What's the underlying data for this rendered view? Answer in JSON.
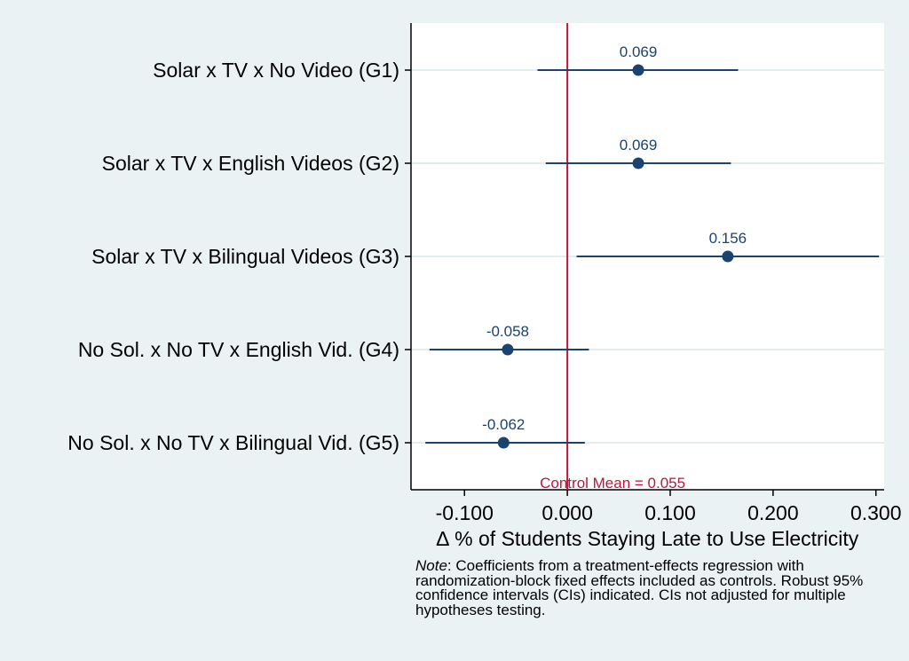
{
  "chart_data": {
    "type": "scatter",
    "subtype": "coefficient-plot",
    "categories": [
      "Solar x TV x No Video (G1)",
      "Solar x TV x English Videos (G2)",
      "Solar x TV x Bilingual Videos (G3)",
      "No Sol. x No TV x English Vid. (G4)",
      "No Sol. x No TV x Bilingual Vid. (G5)"
    ],
    "estimates": [
      {
        "label": "0.069",
        "value": 0.069,
        "ci_low": -0.029,
        "ci_high": 0.166
      },
      {
        "label": "0.069",
        "value": 0.069,
        "ci_low": -0.021,
        "ci_high": 0.159
      },
      {
        "label": "0.156",
        "value": 0.156,
        "ci_low": 0.009,
        "ci_high": 0.303
      },
      {
        "label": "-0.058",
        "value": -0.058,
        "ci_low": -0.134,
        "ci_high": 0.021
      },
      {
        "label": "-0.062",
        "value": -0.062,
        "ci_low": -0.138,
        "ci_high": 0.017
      }
    ],
    "xlabel": "∆ % of Students Staying Late to Use Electricity",
    "xticks": [
      {
        "value": -0.1,
        "label": "-0.100"
      },
      {
        "value": 0.0,
        "label": "0.000"
      },
      {
        "value": 0.1,
        "label": "0.100"
      },
      {
        "value": 0.2,
        "label": "0.200"
      },
      {
        "value": 0.3,
        "label": "0.300"
      }
    ],
    "xlim": [
      -0.152,
      0.308
    ],
    "reference_line": {
      "value": 0.0,
      "label": "Control Mean = 0.055",
      "color": "#c0143c"
    },
    "point_color": "#1a4370",
    "label_color": "#1a4370",
    "grid": "horizontal",
    "note": {
      "lead": "Note",
      "text": ": Coefficients from a treatment-effects regression with randomization-block fixed effects included as controls. Robust 95% confidence intervals (CIs) indicated. CIs not adjusted for multiple hypotheses testing."
    }
  }
}
